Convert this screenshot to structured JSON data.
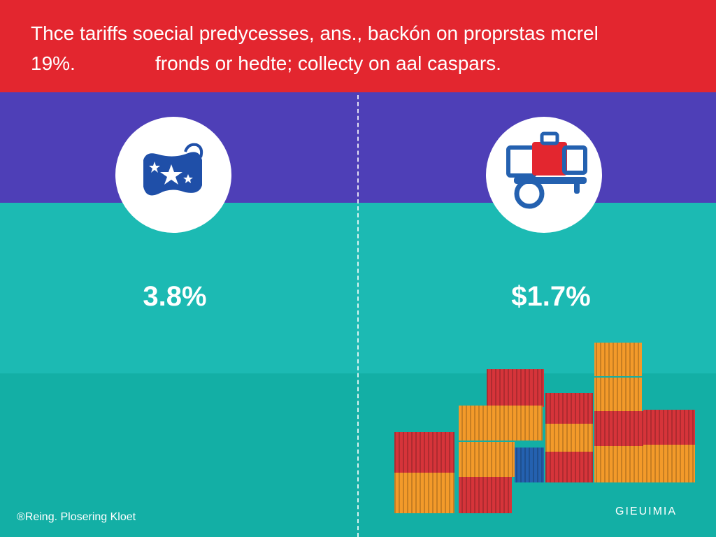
{
  "headline": {
    "line1": "Thce tariffs soecial predycesses, ans., backón on proprstas mcrel",
    "rate": "19%.",
    "line2": "fronds or hedte; collecty on aal caspars."
  },
  "left_panel": {
    "icon": "star-bag-icon",
    "value": "3.8%"
  },
  "right_panel": {
    "icon": "luggage-cart-icon",
    "value": "$1.7%"
  },
  "footer": {
    "left": "®Reing. Plosering Kloet",
    "right": "GIEUIMIA"
  },
  "colors": {
    "top_band": "#e3262f",
    "purple_band": "#4e3fb7",
    "teal_band": "#1cbab3",
    "bottom_band": "#13afa5",
    "icon_blue": "#1f4fa8",
    "container_red": "#d6343a",
    "container_orange": "#f39a2a",
    "container_blue": "#2461b0"
  }
}
